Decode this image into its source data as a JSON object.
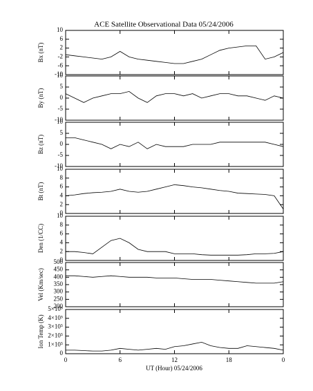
{
  "title": "ACE Satellite Observational Data   05/24/2006",
  "xlabel": "UT (Hour)   05/24/2006",
  "chart_data": [
    {
      "type": "line",
      "ylabel": "Bx (nT)",
      "color": "#000000",
      "x": [
        0,
        1,
        2,
        3,
        4,
        5,
        6,
        7,
        8,
        9,
        10,
        11,
        12,
        13,
        14,
        15,
        16,
        17,
        18,
        19,
        20,
        21,
        22,
        23,
        24
      ],
      "values": [
        -1,
        -1.5,
        -2,
        -2.5,
        -3,
        -2,
        0.5,
        -2,
        -3,
        -3.5,
        -4,
        -4.5,
        -5,
        -5,
        -4,
        -3,
        -1,
        1,
        2,
        2.5,
        3,
        3,
        -3,
        -2,
        0
      ],
      "xlim": [
        0,
        24
      ],
      "xticks": [
        0,
        6,
        12,
        18,
        {
          "value": 24,
          "label": "0"
        }
      ],
      "ylim": [
        -10,
        10
      ],
      "yticks": [
        -10,
        -6,
        -2,
        2,
        6,
        10
      ]
    },
    {
      "type": "line",
      "ylabel": "By (nT)",
      "color": "#000000",
      "x": [
        0,
        1,
        2,
        3,
        4,
        5,
        6,
        7,
        8,
        9,
        10,
        11,
        12,
        13,
        14,
        15,
        16,
        17,
        18,
        19,
        20,
        21,
        22,
        23,
        24
      ],
      "values": [
        2,
        0,
        -2,
        0,
        1,
        2,
        2,
        3,
        0,
        -2,
        1,
        2,
        2,
        1,
        2,
        0,
        1,
        2,
        2,
        1,
        1,
        0,
        -1,
        1,
        0
      ],
      "xlim": [
        0,
        24
      ],
      "xticks": [
        0,
        6,
        12,
        18,
        {
          "value": 24,
          "label": "0"
        }
      ],
      "ylim": [
        -10,
        10
      ],
      "yticks": [
        -10,
        -5,
        0,
        5,
        10
      ]
    },
    {
      "type": "line",
      "ylabel": "Bz (nT)",
      "color": "#000000",
      "x": [
        0,
        1,
        2,
        3,
        4,
        5,
        6,
        7,
        8,
        9,
        10,
        11,
        12,
        13,
        14,
        15,
        16,
        17,
        18,
        19,
        20,
        21,
        22,
        23,
        24
      ],
      "values": [
        3,
        3,
        2,
        1,
        0,
        -2,
        0,
        -1,
        1,
        -2,
        0,
        -1,
        -1,
        -1,
        0,
        0,
        0,
        1,
        1,
        1,
        1,
        1,
        1,
        0,
        -1
      ],
      "xlim": [
        0,
        24
      ],
      "xticks": [
        0,
        6,
        12,
        18,
        {
          "value": 24,
          "label": "0"
        }
      ],
      "ylim": [
        -10,
        10
      ],
      "yticks": [
        -10,
        -5,
        0,
        5,
        10
      ]
    },
    {
      "type": "line",
      "ylabel": "Bt (nT)",
      "color": "#000000",
      "x": [
        0,
        1,
        2,
        3,
        4,
        5,
        6,
        7,
        8,
        9,
        10,
        11,
        12,
        13,
        14,
        15,
        16,
        17,
        18,
        19,
        20,
        21,
        22,
        23,
        24
      ],
      "values": [
        4,
        4.2,
        4.5,
        4.7,
        4.8,
        5,
        5.5,
        5,
        4.8,
        5,
        5.5,
        6,
        6.5,
        6.3,
        6,
        5.8,
        5.5,
        5.2,
        5,
        4.6,
        4.5,
        4.4,
        4.3,
        4,
        1
      ],
      "xlim": [
        0,
        24
      ],
      "xticks": [
        0,
        6,
        12,
        18,
        {
          "value": 24,
          "label": "0"
        }
      ],
      "ylim": [
        0,
        10
      ],
      "yticks": [
        0,
        2,
        4,
        6,
        8,
        10
      ]
    },
    {
      "type": "line",
      "ylabel": "Den (1/CC)",
      "color": "#000000",
      "x": [
        0,
        1,
        2,
        3,
        4,
        5,
        6,
        7,
        8,
        9,
        10,
        11,
        12,
        13,
        14,
        15,
        16,
        17,
        18,
        19,
        20,
        21,
        22,
        23,
        24
      ],
      "values": [
        2,
        2,
        1.8,
        1.5,
        3,
        4.5,
        5,
        4,
        2.5,
        2,
        2,
        2,
        1.5,
        1.5,
        1.5,
        1.3,
        1.2,
        1.2,
        1.2,
        1.2,
        1.3,
        1.5,
        1.5,
        1.6,
        2
      ],
      "xlim": [
        0,
        24
      ],
      "xticks": [
        0,
        6,
        12,
        18,
        {
          "value": 24,
          "label": "0"
        }
      ],
      "ylim": [
        0,
        10
      ],
      "yticks": [
        0,
        2,
        4,
        6,
        8,
        10
      ]
    },
    {
      "type": "line",
      "ylabel": "Vel (Km/sec)",
      "color": "#000000",
      "x": [
        0,
        1,
        2,
        3,
        4,
        5,
        6,
        7,
        8,
        9,
        10,
        11,
        12,
        13,
        14,
        15,
        16,
        17,
        18,
        19,
        20,
        21,
        22,
        23,
        24
      ],
      "values": [
        410,
        410,
        405,
        400,
        405,
        410,
        405,
        400,
        400,
        400,
        395,
        395,
        395,
        390,
        385,
        385,
        385,
        380,
        375,
        370,
        365,
        360,
        360,
        360,
        370
      ],
      "xlim": [
        0,
        24
      ],
      "xticks": [
        0,
        6,
        12,
        18,
        {
          "value": 24,
          "label": "0"
        }
      ],
      "ylim": [
        200,
        500
      ],
      "yticks": [
        200,
        250,
        300,
        350,
        400,
        450,
        500
      ]
    },
    {
      "type": "line",
      "ylabel": "Ion Temp (K)",
      "color": "#000000",
      "x": [
        0,
        1,
        2,
        3,
        4,
        5,
        6,
        7,
        8,
        9,
        10,
        11,
        12,
        13,
        14,
        15,
        16,
        17,
        18,
        19,
        20,
        21,
        22,
        23,
        24
      ],
      "values": [
        40000,
        40000,
        35000,
        30000,
        30000,
        40000,
        60000,
        50000,
        40000,
        50000,
        60000,
        50000,
        80000,
        90000,
        110000,
        130000,
        90000,
        70000,
        60000,
        60000,
        90000,
        80000,
        70000,
        60000,
        40000
      ],
      "xlim": [
        0,
        24
      ],
      "xticks": [
        0,
        6,
        12,
        18,
        {
          "value": 24,
          "label": "0"
        }
      ],
      "ylim": [
        0,
        500000
      ],
      "yticks": [
        0,
        {
          "value": 100000,
          "label": "1×10⁵"
        },
        {
          "value": 200000,
          "label": "2×10⁵"
        },
        {
          "value": 300000,
          "label": "3×10⁵"
        },
        {
          "value": 400000,
          "label": "4×10⁵"
        },
        {
          "value": 500000,
          "label": "5×10⁵"
        }
      ]
    }
  ]
}
